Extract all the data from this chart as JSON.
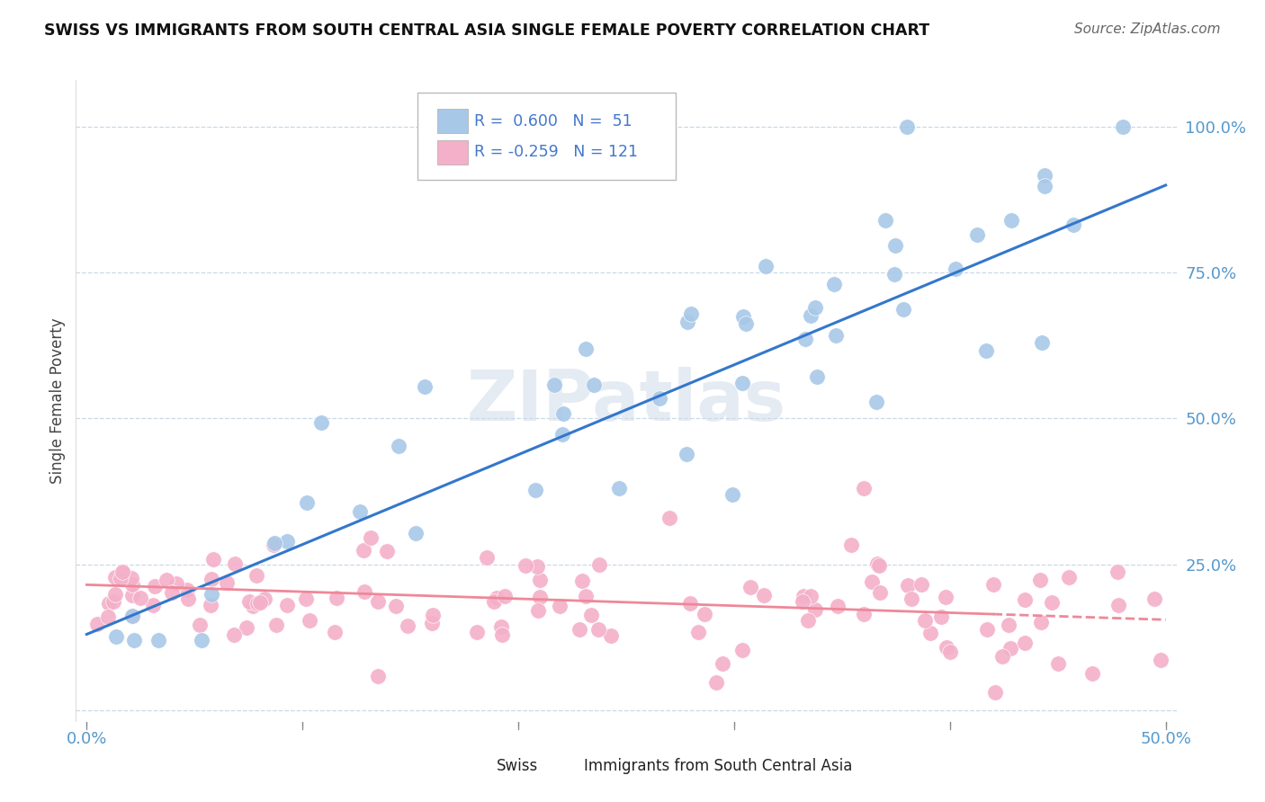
{
  "title": "SWISS VS IMMIGRANTS FROM SOUTH CENTRAL ASIA SINGLE FEMALE POVERTY CORRELATION CHART",
  "source": "Source: ZipAtlas.com",
  "ylabel": "Single Female Poverty",
  "x_min": 0.0,
  "x_max": 0.5,
  "y_min": -0.02,
  "y_max": 1.08,
  "blue_R": 0.6,
  "blue_N": 51,
  "pink_R": -0.259,
  "pink_N": 121,
  "blue_color": "#A8C8E8",
  "pink_color": "#F4B0C8",
  "blue_line_color": "#3377CC",
  "pink_line_color": "#EE8899",
  "legend_swiss": "Swiss",
  "legend_immigrants": "Immigrants from South Central Asia",
  "blue_line_x0": 0.0,
  "blue_line_y0": 0.13,
  "blue_line_x1": 0.5,
  "blue_line_y1": 0.9,
  "pink_line_x0": 0.0,
  "pink_line_y0": 0.215,
  "pink_line_x1": 0.5,
  "pink_line_y1": 0.155
}
